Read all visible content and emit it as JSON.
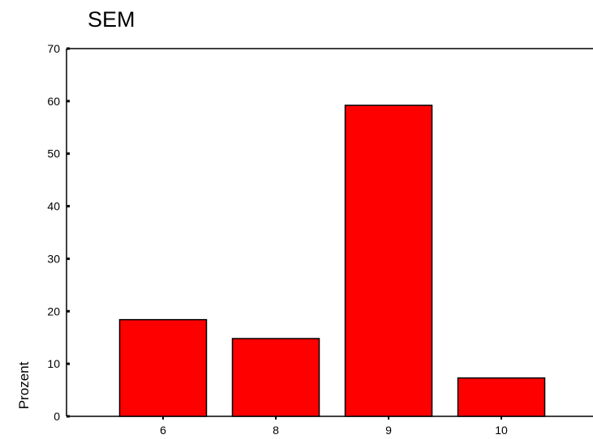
{
  "chart_data": {
    "type": "bar",
    "title": "SEM",
    "xlabel": "",
    "ylabel": "Prozent",
    "categories": [
      "6",
      "8",
      "9",
      "10"
    ],
    "values": [
      18.4,
      14.8,
      59.2,
      7.3
    ],
    "ylim": [
      0,
      70
    ],
    "yticks": [
      0,
      10,
      20,
      30,
      40,
      50,
      60,
      70
    ],
    "grid": false,
    "bar_color": "#ff0000",
    "bar_edge_color": "#000000"
  }
}
